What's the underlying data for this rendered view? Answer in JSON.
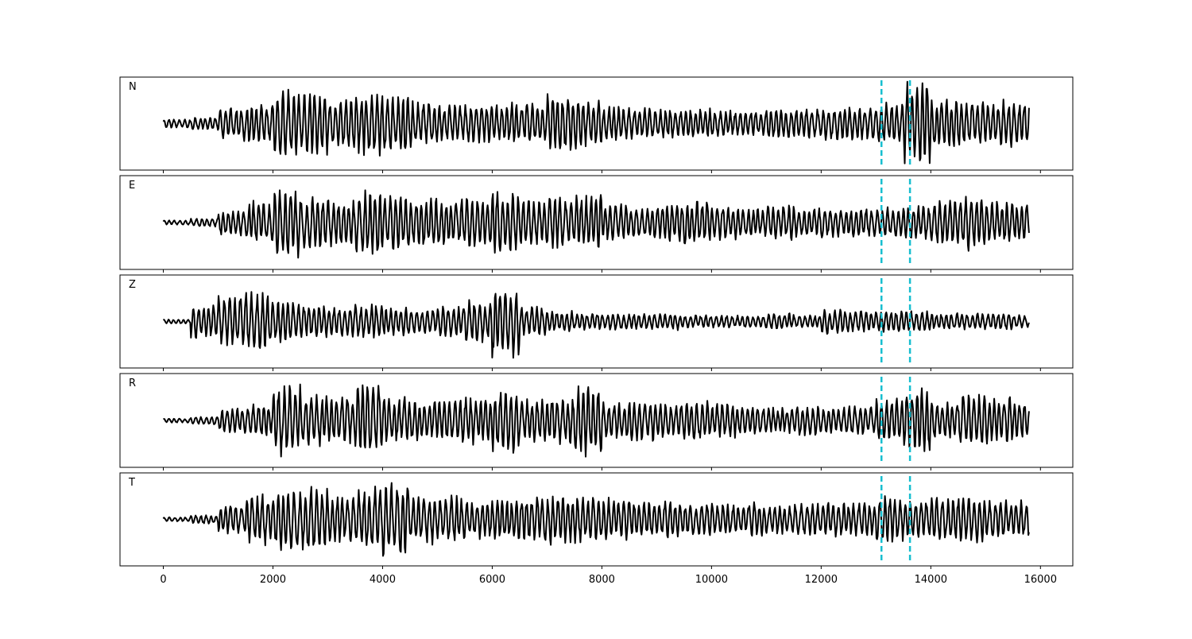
{
  "chart_data": {
    "type": "line",
    "title": "",
    "xlabel": "",
    "ylabel": "",
    "xlim": [
      -790,
      16590
    ],
    "x_ticks": [
      0,
      2000,
      4000,
      6000,
      8000,
      10000,
      12000,
      14000,
      16000
    ],
    "x_tick_labels": [
      "0",
      "2000",
      "4000",
      "6000",
      "8000",
      "10000",
      "12000",
      "14000",
      "16000"
    ],
    "x_range_of_data": [
      0,
      15800
    ],
    "grid": false,
    "line_color": "#000000",
    "markers": {
      "positions": [
        13100,
        13620
      ],
      "style": "dashed",
      "color": "#17becf"
    },
    "envelope_bin_width": 500,
    "note_values": "normalized peak amplitude per 500-sample bin, relative to panel half-height",
    "series": [
      {
        "name": "N",
        "envelope": [
          0.1,
          0.15,
          0.4,
          0.45,
          0.8,
          0.75,
          0.6,
          0.75,
          0.7,
          0.55,
          0.45,
          0.45,
          0.5,
          0.5,
          0.7,
          0.6,
          0.4,
          0.4,
          0.35,
          0.35,
          0.3,
          0.3,
          0.35,
          0.35,
          0.4,
          0.4,
          0.5,
          0.95,
          0.55,
          0.55,
          0.55,
          0.5
        ]
      },
      {
        "name": "E",
        "envelope": [
          0.05,
          0.1,
          0.3,
          0.5,
          0.8,
          0.6,
          0.55,
          0.75,
          0.65,
          0.6,
          0.55,
          0.6,
          0.75,
          0.55,
          0.6,
          0.65,
          0.45,
          0.4,
          0.45,
          0.55,
          0.4,
          0.35,
          0.4,
          0.35,
          0.35,
          0.35,
          0.35,
          0.4,
          0.55,
          0.65,
          0.5,
          0.45
        ]
      },
      {
        "name": "Z",
        "envelope": [
          0.05,
          0.4,
          0.6,
          0.7,
          0.5,
          0.4,
          0.35,
          0.4,
          0.35,
          0.3,
          0.4,
          0.5,
          0.9,
          0.35,
          0.25,
          0.2,
          0.2,
          0.2,
          0.2,
          0.15,
          0.15,
          0.15,
          0.2,
          0.15,
          0.3,
          0.25,
          0.25,
          0.25,
          0.2,
          0.2,
          0.2,
          0.15
        ]
      },
      {
        "name": "R",
        "envelope": [
          0.05,
          0.1,
          0.3,
          0.4,
          0.85,
          0.6,
          0.55,
          0.85,
          0.55,
          0.45,
          0.5,
          0.55,
          0.75,
          0.5,
          0.55,
          0.85,
          0.45,
          0.5,
          0.4,
          0.45,
          0.4,
          0.35,
          0.3,
          0.35,
          0.3,
          0.35,
          0.55,
          0.8,
          0.45,
          0.65,
          0.55,
          0.5
        ]
      },
      {
        "name": "T",
        "envelope": [
          0.05,
          0.1,
          0.35,
          0.6,
          0.75,
          0.8,
          0.55,
          0.75,
          0.85,
          0.6,
          0.55,
          0.45,
          0.5,
          0.55,
          0.6,
          0.55,
          0.5,
          0.45,
          0.45,
          0.4,
          0.4,
          0.4,
          0.35,
          0.4,
          0.4,
          0.4,
          0.55,
          0.45,
          0.5,
          0.55,
          0.45,
          0.45
        ]
      }
    ]
  }
}
